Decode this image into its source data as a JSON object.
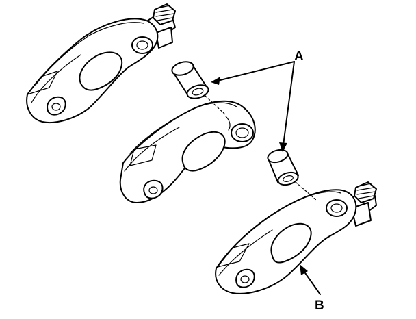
{
  "labels": {
    "a": "A",
    "b": "B"
  },
  "parts": [
    {
      "name": "rocker-arm-upper"
    },
    {
      "name": "rocker-arm-middle"
    },
    {
      "name": "rocker-arm-lower"
    },
    {
      "name": "roller-pin-upper"
    },
    {
      "name": "roller-pin-lower"
    }
  ]
}
